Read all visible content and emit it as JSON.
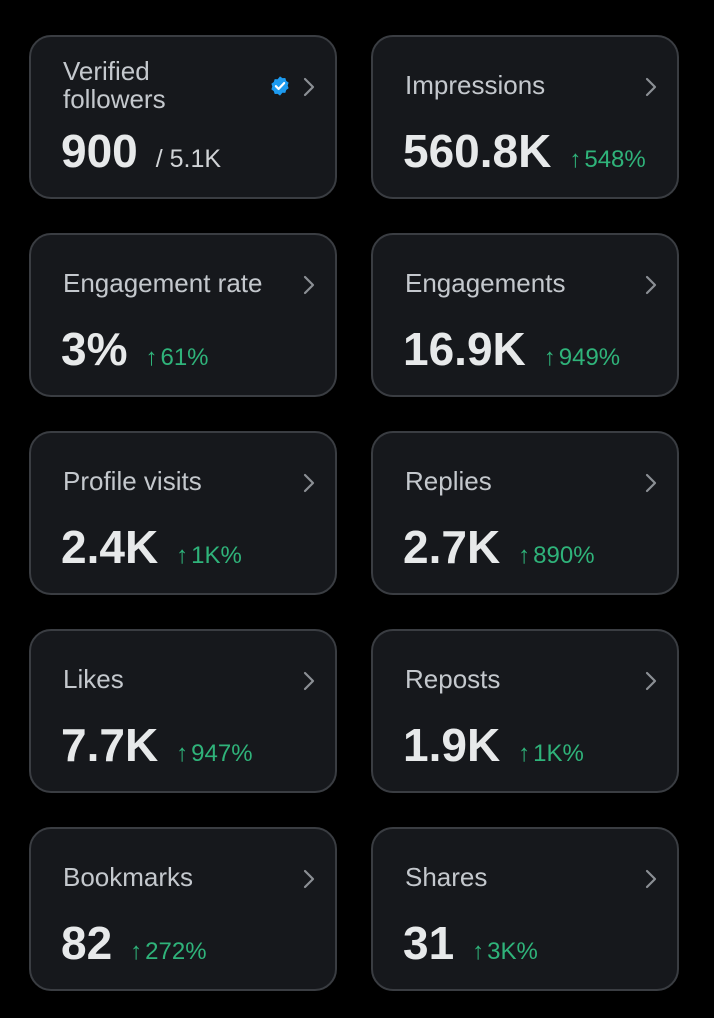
{
  "colors": {
    "background": "#000000",
    "card": "#16181c",
    "border": "#3a3d42",
    "positive": "#2fb37a",
    "verified": "#1d9bf0"
  },
  "cards": [
    {
      "label": "Verified followers",
      "value": "900",
      "sub": "/ 5.1K",
      "icon": "verified-badge-icon"
    },
    {
      "label": "Impressions",
      "value": "560.8K",
      "change": "548%",
      "arrow": "↑"
    },
    {
      "label": "Engagement rate",
      "value": "3%",
      "change": "61%",
      "arrow": "↑"
    },
    {
      "label": "Engagements",
      "value": "16.9K",
      "change": "949%",
      "arrow": "↑"
    },
    {
      "label": "Profile visits",
      "value": "2.4K",
      "change": "1K%",
      "arrow": "↑"
    },
    {
      "label": "Replies",
      "value": "2.7K",
      "change": "890%",
      "arrow": "↑"
    },
    {
      "label": "Likes",
      "value": "7.7K",
      "change": "947%",
      "arrow": "↑"
    },
    {
      "label": "Reposts",
      "value": "1.9K",
      "change": "1K%",
      "arrow": "↑"
    },
    {
      "label": "Bookmarks",
      "value": "82",
      "change": "272%",
      "arrow": "↑"
    },
    {
      "label": "Shares",
      "value": "31",
      "change": "3K%",
      "arrow": "↑"
    }
  ]
}
